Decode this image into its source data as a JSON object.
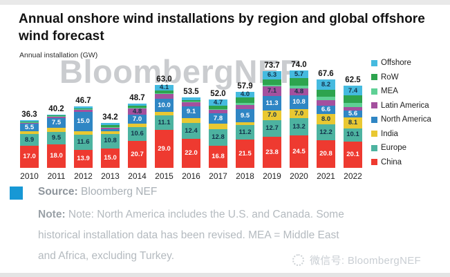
{
  "page": {
    "title": "Annual onshore wind installations by region and global offshore wind forecast",
    "watermark": "BloombergNEF"
  },
  "chart_data": {
    "type": "bar",
    "stacked": true,
    "title": "Annual onshore wind installations by region and global offshore wind forecast",
    "ylabel": "Annual installation (GW)",
    "xlabel": "",
    "grid": false,
    "legend_position": "right",
    "ylim": [
      0,
      80
    ],
    "categories": [
      "2010",
      "2011",
      "2012",
      "2013",
      "2014",
      "2015",
      "2016",
      "2017",
      "2018",
      "2019",
      "2020",
      "2021",
      "2022"
    ],
    "totals": [
      "36.3",
      "40.2",
      "46.7",
      "34.2",
      "48.7",
      "63.0",
      "53.5",
      "52.0",
      "57.9",
      "73.7",
      "74.0",
      "67.6",
      "62.5"
    ],
    "series": [
      {
        "name": "China",
        "color": "#ee3a30",
        "label_color": "#ffffff",
        "values": [
          17.0,
          18.0,
          13.9,
          15.0,
          20.7,
          29.0,
          22.0,
          16.8,
          21.5,
          23.8,
          24.5,
          20.8,
          20.1
        ],
        "labels": [
          "17.0",
          "18.0",
          "13.9",
          "15.0",
          "20.7",
          "29.0",
          "22.0",
          "16.8",
          "21.5",
          "23.8",
          "24.5",
          "20.8",
          "20.1"
        ]
      },
      {
        "name": "Europe",
        "color": "#4db3a0",
        "label_color": "#13324a",
        "values": [
          8.9,
          9.5,
          11.6,
          10.8,
          10.6,
          11.1,
          12.4,
          12.8,
          11.2,
          12.7,
          13.2,
          12.2,
          10.1
        ],
        "labels": [
          "8.9",
          "9.5",
          "11.6",
          "10.8",
          "10.6",
          "11.1",
          "12.4",
          "12.8",
          "11.2",
          "12.7",
          "13.2",
          "12.2",
          "10.1"
        ]
      },
      {
        "name": "India",
        "color": "#e9c832",
        "label_color": "#13324a",
        "values": [
          2.1,
          2.9,
          2.3,
          2.0,
          2.3,
          2.6,
          3.6,
          4.1,
          2.3,
          7.0,
          7.0,
          8.0,
          8.1
        ],
        "labels": [
          "",
          "",
          "",
          "",
          "",
          "",
          "",
          "",
          "",
          "7.0",
          "7.0",
          "8.0",
          "8.1"
        ]
      },
      {
        "name": "North America",
        "color": "#2f86c4",
        "label_color": "#ffffff",
        "values": [
          5.5,
          7.5,
          15.0,
          1.5,
          7.0,
          10.0,
          9.1,
          7.8,
          9.5,
          11.3,
          10.8,
          6.6,
          5.6
        ],
        "labels": [
          "5.5",
          "7.5",
          "15.0",
          "",
          "7.0",
          "10.0",
          "9.1",
          "7.8",
          "9.5",
          "11.3",
          "10.8",
          "6.6",
          "5.6"
        ]
      },
      {
        "name": "Latin America",
        "color": "#a4509e",
        "label_color": "#13324a",
        "values": [
          0.7,
          0.9,
          1.2,
          1.0,
          4.8,
          3.5,
          2.7,
          2.5,
          3.5,
          7.1,
          4.8,
          4.0,
          2.5
        ],
        "labels": [
          "",
          "",
          "",
          "",
          "4.8",
          "",
          "",
          "",
          "",
          "7.1",
          "4.8",
          "",
          ""
        ]
      },
      {
        "name": "MEA",
        "color": "#5fd095",
        "label_color": "#13324a",
        "values": [
          0.3,
          0.2,
          0.2,
          0.3,
          0.2,
          0.3,
          0.3,
          0.3,
          1.5,
          1.5,
          2.5,
          2.8,
          3.2
        ],
        "labels": [
          "",
          "",
          "",
          "",
          "",
          "",
          "",
          "",
          "",
          "",
          "",
          "",
          ""
        ]
      },
      {
        "name": "RoW",
        "color": "#2da44e",
        "label_color": "#13324a",
        "values": [
          0.7,
          0.6,
          1.0,
          1.9,
          1.4,
          2.4,
          1.2,
          3.0,
          4.4,
          4.0,
          5.5,
          5.0,
          5.5
        ],
        "labels": [
          "",
          "",
          "",
          "",
          "",
          "",
          "",
          "",
          "",
          "",
          "",
          "",
          ""
        ]
      },
      {
        "name": "Offshore",
        "color": "#45badf",
        "label_color": "#13324a",
        "values": [
          1.1,
          0.6,
          1.5,
          1.7,
          1.7,
          4.1,
          2.2,
          4.7,
          4.0,
          6.3,
          5.7,
          8.2,
          7.4
        ],
        "labels": [
          "",
          "",
          "",
          "",
          "",
          "4.1",
          "",
          "4.7",
          "4.0",
          "6.3",
          "5.7",
          "8.2",
          "7.4"
        ]
      }
    ]
  },
  "source": {
    "label": "Source:",
    "text": "Bloomberg NEF"
  },
  "note": {
    "label": "Note:",
    "text": "Note: North America includes the U.S. and Canada. Some historical installation data has been revised. MEA = Middle East and Africa, excluding Turkey."
  },
  "footer": {
    "wechat_text": "微信号: BloombergNEF"
  }
}
